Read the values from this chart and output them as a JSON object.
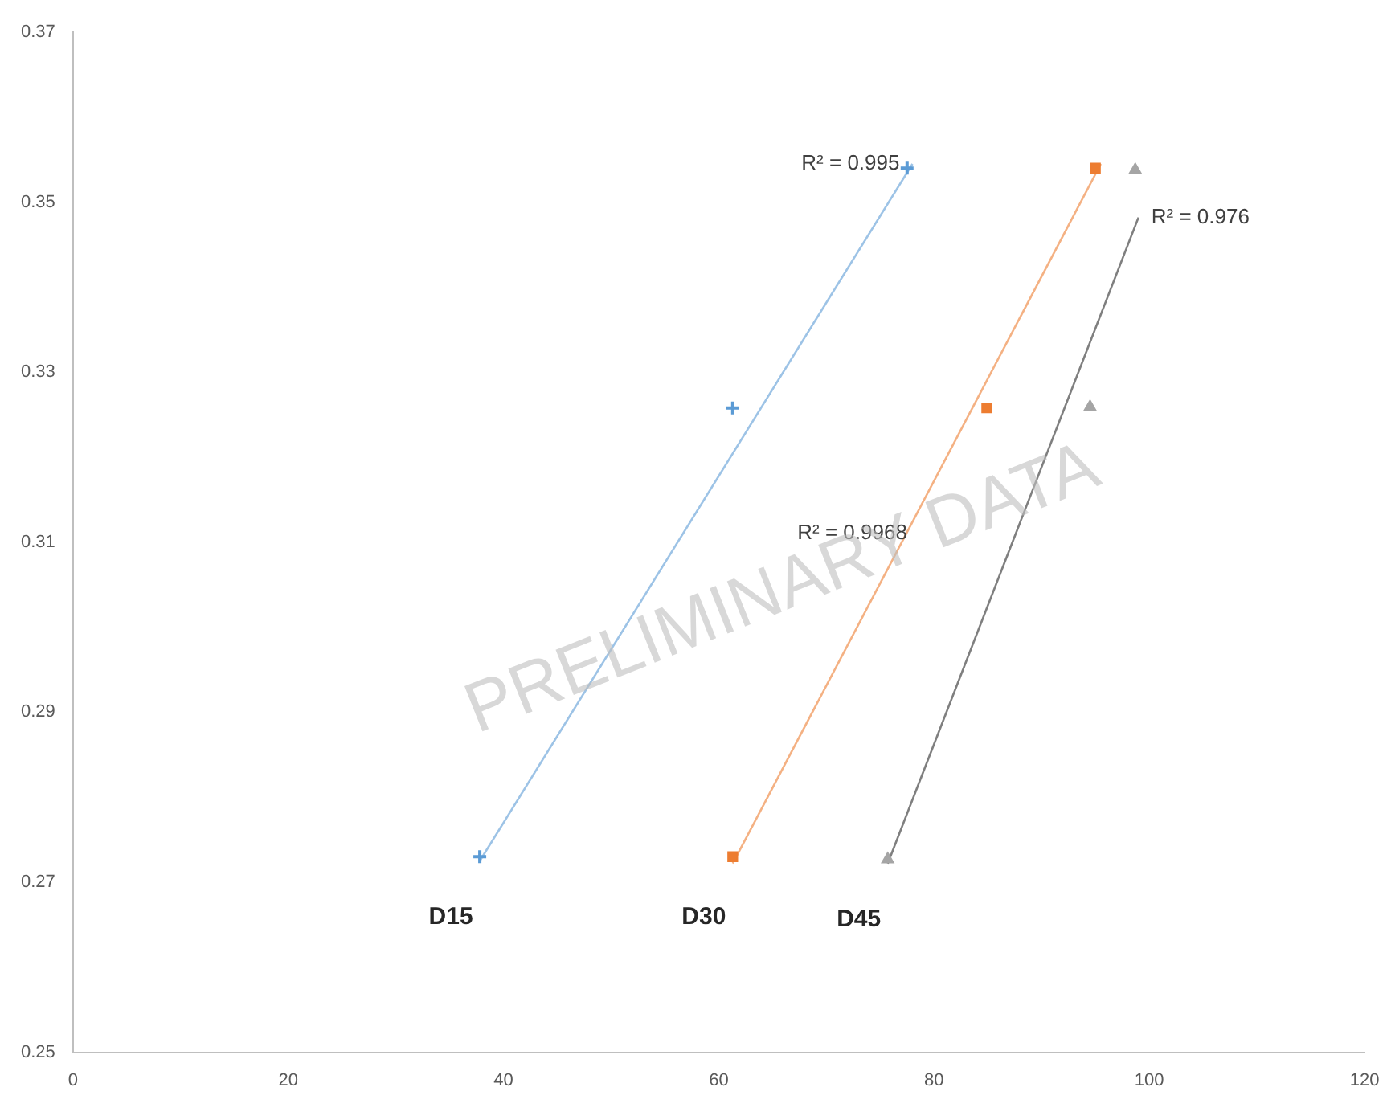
{
  "chart_data": {
    "type": "scatter",
    "xlim": [
      0,
      120
    ],
    "xticks": [
      0,
      20,
      40,
      60,
      80,
      100,
      120
    ],
    "ylim": [
      0.25,
      0.37
    ],
    "yticks": [
      0.25,
      0.27,
      0.29,
      0.31,
      0.33,
      0.35,
      0.37
    ],
    "grid": false,
    "legend": false,
    "series": [
      {
        "name": "D15",
        "type": "scatter",
        "marker": "cross",
        "color": "#5b9bd5",
        "x": [
          37.8,
          61.3,
          77.5
        ],
        "values": [
          0.273,
          0.3258,
          0.354
        ]
      },
      {
        "name": "D30",
        "type": "scatter",
        "marker": "square",
        "color": "#ed7d31",
        "x": [
          61.3,
          84.9,
          95
        ],
        "values": [
          0.273,
          0.3258,
          0.354
        ]
      },
      {
        "name": "D45",
        "type": "scatter",
        "marker": "triangle",
        "color": "#a5a5a5",
        "x": [
          75.7,
          94.5,
          98.7
        ],
        "values": [
          0.2727,
          0.3259,
          0.3538
        ]
      },
      {
        "type": "line",
        "marker": "none",
        "line_style": "solid",
        "color": "#9dc3e6",
        "x": [
          37.8,
          78
        ],
        "values": [
          0.2725,
          0.3545
        ]
      },
      {
        "type": "line",
        "marker": "none",
        "line_style": "solid",
        "color": "#f4b183",
        "x": [
          61.3,
          95.5
        ],
        "values": [
          0.2722,
          0.3545
        ]
      },
      {
        "type": "line",
        "marker": "none",
        "line_style": "solid",
        "color": "#7f7f7f",
        "x": [
          75.7,
          99
        ],
        "values": [
          0.2722,
          0.3482
        ]
      }
    ],
    "annotations": [
      "R² = 0.995",
      "R² = 0.9968",
      "R² = 0.976",
      "PRELIMINARY DATA"
    ]
  }
}
